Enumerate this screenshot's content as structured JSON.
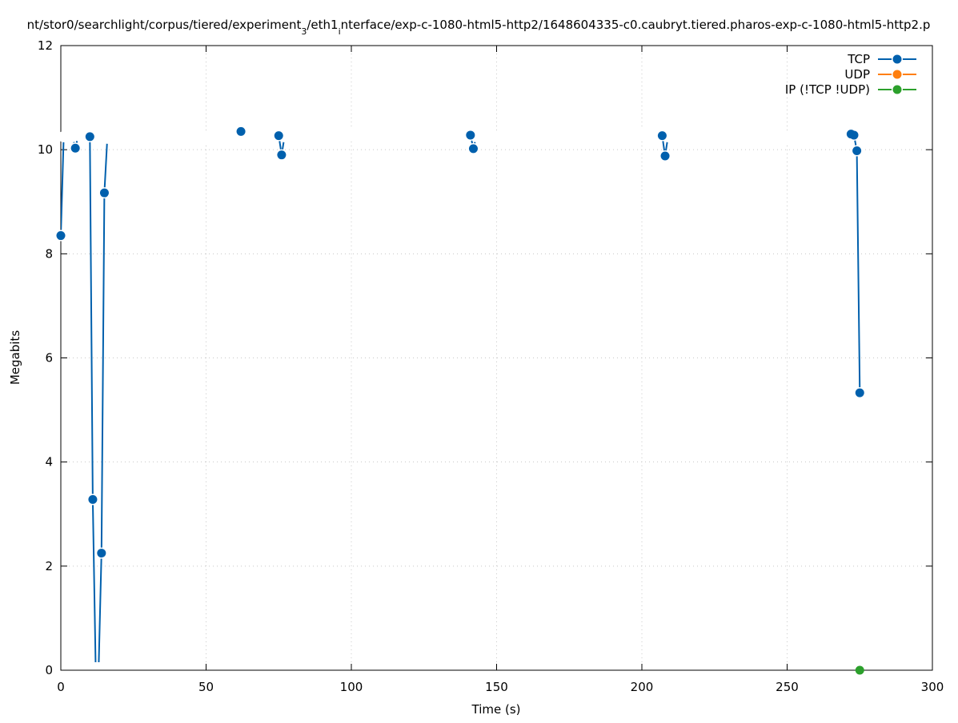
{
  "chart_data": {
    "type": "line",
    "title_parts": [
      {
        "text": "nt/stor0/searchlight/corpus/tiered/experiment"
      },
      {
        "text": "3",
        "sub": true
      },
      {
        "text": "/eth1"
      },
      {
        "text": "i",
        "sub": true
      },
      {
        "text": "nterface/exp-c-1080-html5-http2/1648604335-c0.caubryt.tiered.pharos-exp-c-1080-html5-http2.p"
      }
    ],
    "xlabel": "Time (s)",
    "ylabel": "Megabits",
    "xlim": [
      0,
      300
    ],
    "ylim": [
      0,
      12
    ],
    "xticks": [
      0,
      50,
      100,
      150,
      200,
      250,
      300
    ],
    "yticks": [
      0,
      2,
      4,
      6,
      8,
      10,
      12
    ],
    "grid": true,
    "legend_placement": "top-right",
    "series": [
      {
        "name": "TCP",
        "color": "#0060ad",
        "x": [
          0,
          1,
          2,
          3,
          4,
          5,
          6,
          7,
          8,
          9,
          10,
          11,
          12,
          13,
          14,
          15,
          16,
          17,
          18,
          19,
          20,
          21,
          22,
          23,
          24,
          25,
          26,
          27,
          28,
          29,
          30,
          31,
          32,
          33,
          34,
          35,
          36,
          37,
          38,
          39,
          40,
          41,
          42,
          43,
          44,
          45,
          46,
          47,
          48,
          49,
          50,
          51,
          52,
          53,
          54,
          55,
          56,
          57,
          58,
          59,
          60,
          61,
          62,
          63,
          64,
          65,
          66,
          67,
          68,
          69,
          70,
          71,
          72,
          73,
          74,
          75,
          76,
          77,
          78,
          79,
          80,
          81,
          82,
          83,
          84,
          85,
          86,
          87,
          88,
          89,
          90,
          91,
          92,
          93,
          94,
          95,
          96,
          97,
          98,
          99,
          100,
          101,
          102,
          103,
          104,
          105,
          106,
          107,
          108,
          109,
          110,
          111,
          112,
          113,
          114,
          115,
          116,
          117,
          118,
          119,
          120,
          121,
          122,
          123,
          124,
          125,
          126,
          127,
          128,
          129,
          130,
          131,
          132,
          133,
          134,
          135,
          136,
          137,
          138,
          139,
          140,
          141,
          142,
          143,
          144,
          145,
          146,
          147,
          148,
          149,
          150,
          151,
          152,
          153,
          154,
          155,
          156,
          157,
          158,
          159,
          160,
          161,
          162,
          163,
          164,
          165,
          166,
          167,
          168,
          169,
          170,
          171,
          172,
          173,
          174,
          175,
          176,
          177,
          178,
          179,
          180,
          181,
          182,
          183,
          184,
          185,
          186,
          187,
          188,
          189,
          190,
          191,
          192,
          193,
          194,
          195,
          196,
          197,
          198,
          199,
          200,
          201,
          202,
          203,
          204,
          205,
          206,
          207,
          208,
          209,
          210,
          211,
          212,
          213,
          214,
          215,
          216,
          217,
          218,
          219,
          220,
          221,
          222,
          223,
          224,
          225,
          226,
          227,
          228,
          229,
          230,
          231,
          232,
          233,
          234,
          235,
          236,
          237,
          238,
          239,
          240,
          241,
          242,
          243,
          244,
          245,
          246,
          247,
          248,
          249,
          250,
          251,
          252,
          253,
          254,
          255,
          256,
          257,
          258,
          259,
          260,
          261,
          262,
          263,
          264,
          265,
          266,
          267,
          268,
          269,
          270,
          271,
          272,
          273,
          274,
          275
        ],
        "values": [
          8.35,
          10.25,
          10.24,
          10.26,
          10.25,
          10.03,
          10.27,
          10.25,
          10.24,
          10.26,
          10.25,
          3.28,
          0,
          0,
          2.25,
          9.17,
          10.22,
          10.25,
          10.24,
          10.26,
          10.25,
          10.23,
          10.26,
          10.25,
          10.24,
          10.27,
          10.25,
          10.23,
          10.26,
          10.25,
          10.3,
          10.25,
          10.24,
          10.22,
          10.26,
          10.25,
          10.24,
          10.27,
          10.25,
          10.23,
          10.26,
          10.25,
          10.24,
          10.25,
          10.22,
          10.26,
          10.25,
          10.24,
          10.27,
          10.25,
          10.23,
          10.26,
          10.25,
          10.24,
          10.25,
          10.22,
          10.26,
          10.25,
          10.24,
          10.27,
          10.25,
          10.28,
          10.35,
          10.3,
          10.26,
          10.25,
          10.24,
          10.27,
          10.3,
          10.25,
          10.22,
          10.26,
          10.25,
          10.24,
          10.27,
          10.27,
          9.9,
          10.25,
          10.23,
          10.26,
          10.25,
          10.24,
          10.3,
          10.25,
          10.23,
          10.26,
          10.25,
          10.24,
          10.27,
          10.25,
          10.23,
          10.26,
          10.25,
          10.24,
          10.25,
          10.22,
          10.26,
          10.25,
          10.24,
          10.27,
          10.3,
          10.25,
          10.24,
          10.26,
          10.25,
          10.3,
          10.27,
          10.25,
          10.24,
          10.3,
          10.25,
          10.23,
          10.26,
          10.25,
          10.24,
          10.27,
          10.25,
          10.23,
          10.26,
          10.25,
          10.3,
          10.25,
          10.3,
          10.26,
          10.22,
          10.25,
          10.24,
          10.27,
          10.25,
          10.23,
          10.26,
          10.25,
          10.24,
          10.25,
          10.3,
          10.26,
          10.25,
          10.24,
          10.27,
          10.25,
          10.25,
          10.28,
          10.02,
          10.25,
          10.24,
          10.26,
          10.25,
          10.24,
          10.27,
          10.25,
          10.23,
          10.26,
          10.25,
          10.24,
          10.25,
          10.25,
          10.33,
          10.25,
          10.24,
          10.27,
          10.25,
          10.23,
          10.26,
          10.25,
          10.24,
          10.27,
          10.25,
          10.23,
          10.26,
          10.25,
          10.24,
          10.27,
          10.25,
          10.3,
          10.26,
          10.25,
          10.24,
          10.27,
          10.25,
          10.23,
          10.26,
          10.3,
          10.25,
          10.24,
          10.25,
          10.22,
          10.26,
          10.25,
          10.33,
          10.27,
          10.25,
          10.23,
          10.26,
          10.25,
          10.24,
          10.27,
          10.3,
          10.23,
          10.26,
          10.25,
          10.3,
          10.25,
          10.24,
          10.26,
          10.25,
          10.24,
          10.27,
          10.27,
          9.88,
          10.25,
          10.23,
          10.26,
          10.25,
          10.24,
          10.25,
          10.22,
          10.26,
          10.25,
          10.24,
          10.27,
          10.25,
          10.23,
          10.26,
          10.25,
          10.3,
          10.27,
          10.25,
          10.23,
          10.22,
          10.25,
          10.24,
          10.27,
          10.25,
          10.23,
          10.26,
          10.25,
          10.24,
          10.25,
          10.22,
          10.26,
          10.25,
          10.24,
          10.27,
          10.25,
          10.23,
          10.26,
          10.25,
          10.24,
          10.27,
          10.25,
          10.23,
          10.26,
          10.25,
          10.24,
          10.25,
          10.22,
          10.26,
          10.25,
          10.24,
          10.27,
          10.25,
          10.23,
          10.26,
          10.25,
          10.24,
          10.27,
          10.25,
          10.23,
          10.26,
          10.25,
          10.24,
          10.3,
          10.3,
          10.28,
          9.98,
          5.33
        ],
        "marked_x": [
          0,
          5,
          10,
          11,
          14,
          15,
          62,
          75,
          76,
          141,
          142,
          207,
          208,
          272,
          273,
          274,
          275
        ]
      },
      {
        "name": "UDP",
        "color": "#ff7f0e",
        "x": [],
        "values": [],
        "marked_x": []
      },
      {
        "name": "IP (!TCP  !UDP)",
        "color": "#2ca02c",
        "x": [
          275
        ],
        "values": [
          0
        ],
        "marked_x": [
          275
        ]
      }
    ]
  }
}
